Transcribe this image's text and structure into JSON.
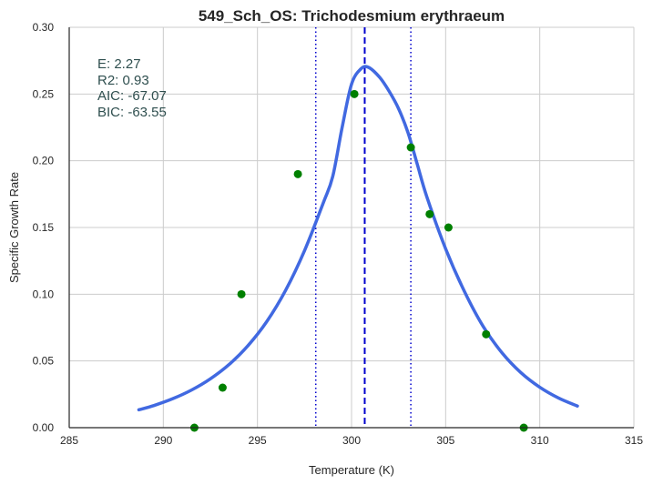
{
  "chart_data": {
    "type": "scatter",
    "title": "549_Sch_OS: Trichodesmium erythraeum",
    "xlabel": "Temperature (K)",
    "ylabel": "Specific Growth Rate",
    "xlim": [
      285,
      315
    ],
    "ylim": [
      0.0,
      0.3
    ],
    "xticks": [
      "285",
      "290",
      "295",
      "300",
      "305",
      "310",
      "315"
    ],
    "yticks": [
      "0.00",
      "0.05",
      "0.10",
      "0.15",
      "0.20",
      "0.25",
      "0.30"
    ],
    "grid": true,
    "annotations": [
      "E:  2.27",
      "R2:  0.93",
      "AIC: -67.07",
      "BIC: -63.55"
    ],
    "colors": {
      "points": "#008000",
      "fit": "#4169e1",
      "peak_line": "#0000cd",
      "bound_lines": "#0000cd",
      "grid": "#cccccc"
    },
    "points": {
      "x": [
        291.65,
        293.15,
        294.15,
        297.15,
        300.15,
        303.15,
        304.15,
        305.15,
        307.15,
        309.15
      ],
      "y": [
        0.0,
        0.03,
        0.1,
        0.19,
        0.25,
        0.21,
        0.16,
        0.15,
        0.07,
        0.0
      ]
    },
    "fit": {
      "x": [
        288.7,
        289.5,
        290.5,
        291.5,
        292.5,
        293.5,
        294.5,
        295.5,
        296.5,
        297.5,
        298.5,
        299.0,
        299.5,
        300.0,
        300.5,
        300.9,
        301.5,
        302.0,
        302.5,
        303.0,
        303.5,
        304.0,
        305.0,
        306.0,
        307.0,
        308.0,
        309.0,
        310.0,
        311.0,
        312.0
      ],
      "y": [
        0.0134,
        0.0166,
        0.0217,
        0.0282,
        0.0366,
        0.0474,
        0.0615,
        0.0796,
        0.103,
        0.1326,
        0.1685,
        0.1882,
        0.225,
        0.2574,
        0.2689,
        0.27,
        0.2624,
        0.252,
        0.239,
        0.221,
        0.197,
        0.173,
        0.134,
        0.102,
        0.0757,
        0.056,
        0.0412,
        0.0303,
        0.0222,
        0.0162
      ]
    },
    "vlines": {
      "peak": 300.7,
      "bounds": [
        298.1,
        303.15
      ]
    }
  }
}
